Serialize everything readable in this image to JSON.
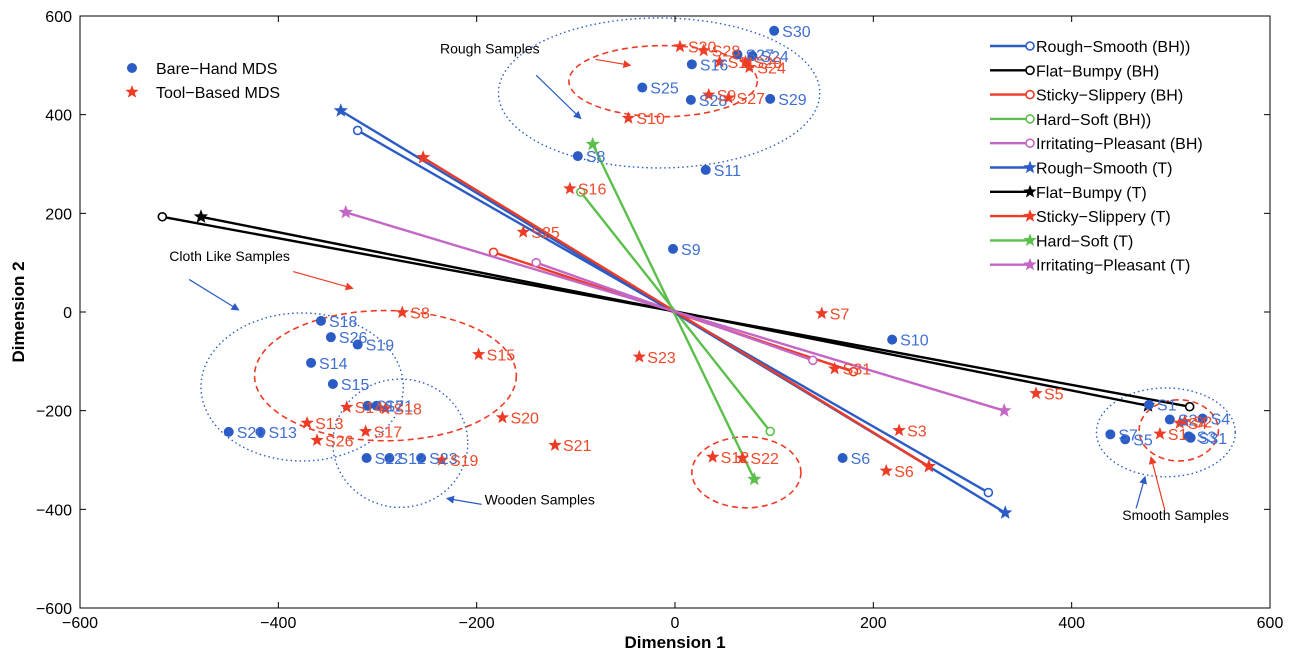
{
  "chart_data": {
    "type": "scatter",
    "xlabel": "Dimension 1",
    "ylabel": "Dimension 2",
    "xlim": [
      -600,
      600
    ],
    "ylim": [
      -600,
      600
    ],
    "x_ticks": [
      -600,
      -400,
      -200,
      0,
      200,
      400,
      600
    ],
    "y_ticks": [
      -600,
      -400,
      -200,
      0,
      200,
      400,
      600
    ],
    "grid": false,
    "legend_placement": "top-left",
    "colors": {
      "blue": "#2b5cc6",
      "red": "#ee3b25",
      "black": "#000000",
      "green": "#5bc04b",
      "purple": "#c466c6",
      "label_blue": "#3f6fd0",
      "label_red": "#ee4a2a"
    },
    "series": [
      {
        "name": "Bare−Hand MDS",
        "marker": "circle",
        "color": "#2b5cc6",
        "points": [
          {
            "label": "S1",
            "x": 478,
            "y": -188
          },
          {
            "label": "S2",
            "x": 499,
            "y": -218
          },
          {
            "label": "S3",
            "x": 518,
            "y": -252
          },
          {
            "label": "S4",
            "x": 532,
            "y": -216
          },
          {
            "label": "S5",
            "x": 454,
            "y": -258
          },
          {
            "label": "S6",
            "x": 169,
            "y": -296
          },
          {
            "label": "S7",
            "x": 439,
            "y": -248
          },
          {
            "label": "S8",
            "x": -98,
            "y": 316
          },
          {
            "label": "S9",
            "x": -2,
            "y": 128
          },
          {
            "label": "S10",
            "x": 219,
            "y": -56
          },
          {
            "label": "S11",
            "x": 31,
            "y": 288
          },
          {
            "label": "S12",
            "x": -288,
            "y": -296
          },
          {
            "label": "S13",
            "x": -418,
            "y": -243
          },
          {
            "label": "S14",
            "x": -367,
            "y": -103
          },
          {
            "label": "S15",
            "x": -345,
            "y": -146
          },
          {
            "label": "S16",
            "x": 17,
            "y": 502
          },
          {
            "label": "S17",
            "x": -310,
            "y": -190
          },
          {
            "label": "S18",
            "x": -357,
            "y": -18
          },
          {
            "label": "S19",
            "x": -320,
            "y": -66
          },
          {
            "label": "S20",
            "x": -450,
            "y": -243
          },
          {
            "label": "S21",
            "x": -301,
            "y": -190
          },
          {
            "label": "S22",
            "x": -311,
            "y": -296
          },
          {
            "label": "S23",
            "x": -256,
            "y": -296
          },
          {
            "label": "S24",
            "x": 78,
            "y": 519
          },
          {
            "label": "S25",
            "x": -33,
            "y": 455
          },
          {
            "label": "S26",
            "x": -347,
            "y": -51
          },
          {
            "label": "S27",
            "x": 63,
            "y": 522
          },
          {
            "label": "S28",
            "x": 16,
            "y": 430
          },
          {
            "label": "S29",
            "x": 96,
            "y": 432
          },
          {
            "label": "S30",
            "x": 100,
            "y": 570
          },
          {
            "label": "S31",
            "x": 520,
            "y": -255
          }
        ]
      },
      {
        "name": "Tool−Based MDS",
        "marker": "star",
        "color": "#ee3b25",
        "points": [
          {
            "label": "S1",
            "x": 489,
            "y": -247
          },
          {
            "label": "S2",
            "x": 514,
            "y": -222
          },
          {
            "label": "S3",
            "x": 226,
            "y": -240
          },
          {
            "label": "S4",
            "x": 509,
            "y": -225
          },
          {
            "label": "S5",
            "x": 364,
            "y": -165
          },
          {
            "label": "S6",
            "x": 213,
            "y": -322
          },
          {
            "label": "S7",
            "x": 148,
            "y": -3
          },
          {
            "label": "S8",
            "x": -275,
            "y": -1
          },
          {
            "label": "S9",
            "x": 34,
            "y": 440
          },
          {
            "label": "S10",
            "x": -47,
            "y": 393
          },
          {
            "label": "S11",
            "x": 45,
            "y": 507
          },
          {
            "label": "S12",
            "x": 38,
            "y": -294
          },
          {
            "label": "S13",
            "x": -371,
            "y": -225
          },
          {
            "label": "S14",
            "x": -331,
            "y": -193
          },
          {
            "label": "S15",
            "x": -198,
            "y": -86
          },
          {
            "label": "S16",
            "x": -106,
            "y": 250
          },
          {
            "label": "S17",
            "x": -312,
            "y": -242
          },
          {
            "label": "S18",
            "x": -292,
            "y": -196
          },
          {
            "label": "S19",
            "x": -235,
            "y": -300
          },
          {
            "label": "S20",
            "x": -174,
            "y": -214
          },
          {
            "label": "S21",
            "x": -121,
            "y": -270
          },
          {
            "label": "S22",
            "x": 68,
            "y": -296
          },
          {
            "label": "S23",
            "x": -36,
            "y": -91
          },
          {
            "label": "S24",
            "x": 75,
            "y": 496
          },
          {
            "label": "S25",
            "x": -153,
            "y": 162
          },
          {
            "label": "S26",
            "x": -361,
            "y": -260
          },
          {
            "label": "S27",
            "x": 54,
            "y": 434
          },
          {
            "label": "S28",
            "x": 29,
            "y": 530
          },
          {
            "label": "S29",
            "x": 71,
            "y": 507
          },
          {
            "label": "S30",
            "x": 5,
            "y": 538
          },
          {
            "label": "S31",
            "x": 161,
            "y": -115
          }
        ]
      }
    ],
    "axis_lines": [
      {
        "name": "Rough−Smooth (BH))",
        "color": "#2b5cc6",
        "marker": "circle",
        "start": [
          0,
          0
        ],
        "end": [
          -320,
          368
        ],
        "neg_end": [
          316,
          -366
        ]
      },
      {
        "name": "Flat−Bumpy (BH)",
        "color": "#000000",
        "marker": "circle",
        "start": [
          0,
          0
        ],
        "end": [
          -517,
          193
        ],
        "neg_end": [
          519,
          -192
        ]
      },
      {
        "name": "Sticky−Slippery (BH)",
        "color": "#ee3b25",
        "marker": "circle",
        "start": [
          0,
          0
        ],
        "end": [
          -183,
          121
        ],
        "neg_end": [
          180,
          -121
        ]
      },
      {
        "name": "Hard−Soft (BH))",
        "color": "#5bc04b",
        "marker": "circle",
        "start": [
          0,
          0
        ],
        "end": [
          -95,
          243
        ],
        "neg_end": [
          96,
          -242
        ]
      },
      {
        "name": "Irritating−Pleasant (BH)",
        "color": "#c466c6",
        "marker": "circle",
        "start": [
          0,
          0
        ],
        "end": [
          -140,
          100
        ],
        "neg_end": [
          139,
          -98
        ]
      },
      {
        "name": "Rough−Smooth (T)",
        "color": "#2b5cc6",
        "marker": "star",
        "start": [
          0,
          0
        ],
        "end": [
          -337,
          408
        ],
        "neg_end": [
          333,
          -407
        ]
      },
      {
        "name": "Flat−Bumpy (T)",
        "color": "#000000",
        "marker": "star",
        "start": [
          0,
          0
        ],
        "end": [
          -478,
          193
        ],
        "neg_end": [
          477,
          -190
        ]
      },
      {
        "name": "Sticky−Slippery (T)",
        "color": "#ee3b25",
        "marker": "star",
        "start": [
          0,
          0
        ],
        "end": [
          -254,
          313
        ],
        "neg_end": [
          256,
          -313
        ]
      },
      {
        "name": "Hard−Soft (T)",
        "color": "#5bc04b",
        "marker": "star",
        "start": [
          0,
          0
        ],
        "end": [
          -83,
          340
        ],
        "neg_end": [
          80,
          -339
        ]
      },
      {
        "name": "Irritating−Pleasant (T)",
        "color": "#c466c6",
        "marker": "star",
        "start": [
          0,
          0
        ],
        "end": [
          -332,
          202
        ],
        "neg_end": [
          332,
          -200
        ]
      }
    ],
    "groups": [
      {
        "label": "Rough Samples",
        "center": [
          -16,
          444
        ],
        "rx": 162,
        "ry": 152,
        "style": "dotted-blue"
      },
      {
        "label": "",
        "center": [
          -12,
          468
        ],
        "rx": 95,
        "ry": 72,
        "style": "dashed-red"
      },
      {
        "label": "Cloth Like Samples",
        "center": [
          -376,
          -152
        ],
        "rx": 102,
        "ry": 150,
        "style": "dotted-blue"
      },
      {
        "label": "",
        "center": [
          -292,
          -129
        ],
        "rx": 132,
        "ry": 132,
        "style": "dashed-red"
      },
      {
        "label": "Wooden Samples",
        "center": [
          -277,
          -266
        ],
        "rx": 68,
        "ry": 130,
        "style": "dotted-blue"
      },
      {
        "label": "",
        "center": [
          72,
          -325
        ],
        "rx": 55,
        "ry": 72,
        "style": "dashed-red"
      },
      {
        "label": "Smooth Samples",
        "center": [
          495,
          -244
        ],
        "rx": 70,
        "ry": 90,
        "style": "dotted-blue"
      },
      {
        "label": "",
        "center": [
          508,
          -240
        ],
        "rx": 40,
        "ry": 62,
        "style": "dashed-red"
      }
    ],
    "annotations": [
      {
        "text": "Rough Samples",
        "x": -237,
        "y": 524
      },
      {
        "text": "Cloth Like Samples",
        "x": -510,
        "y": 103
      },
      {
        "text": "Wooden Samples",
        "x": -192,
        "y": -390
      },
      {
        "text": "Smooth Samples",
        "x": 451,
        "y": -422
      }
    ]
  }
}
